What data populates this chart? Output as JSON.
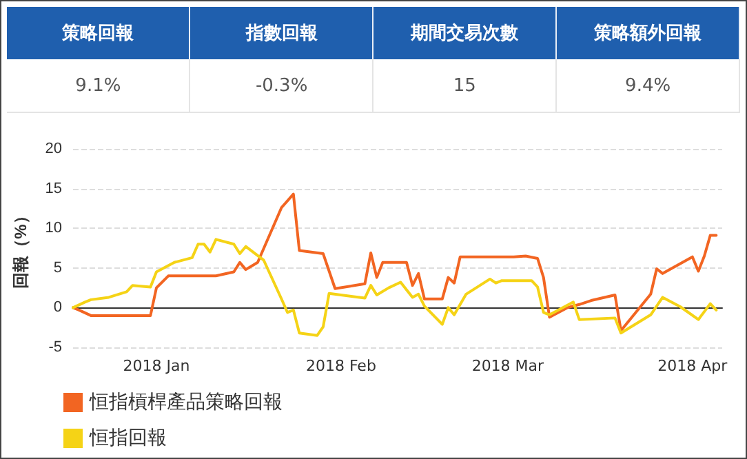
{
  "chart_data": [
    {
      "type": "other",
      "categories": [
        "策略回報",
        "指數回報",
        "期間交易次數",
        "策略額外回報"
      ],
      "value_labels": [
        "9.1%",
        "-0.3%",
        "15",
        "9.4%"
      ]
    },
    {
      "type": "line",
      "ylabel": "回報（%）",
      "xlim": [
        "2017-12-18",
        "2018-04-06"
      ],
      "xticks": [
        {
          "value": "2018-01-01",
          "label": "2018 Jan"
        },
        {
          "value": "2018-02-01",
          "label": "2018 Feb"
        },
        {
          "value": "2018-03-01",
          "label": "2018 Mar"
        },
        {
          "value": "2018-04-01",
          "label": "2018 Apr"
        }
      ],
      "ylim": [
        -5,
        20
      ],
      "yticks": [
        -5,
        0,
        5,
        10,
        15,
        20
      ],
      "grid": "y",
      "legend": "bottom left",
      "marker": "none",
      "line_style": "solid",
      "series": [
        {
          "name": "恒指槓桿產品策略回報",
          "color": "#f26522",
          "x": [
            "2017-12-18",
            "2017-12-19",
            "2017-12-21",
            "2017-12-31",
            "2018-01-01",
            "2018-01-03",
            "2018-01-11",
            "2018-01-14",
            "2018-01-15",
            "2018-01-16",
            "2018-01-18",
            "2018-01-22",
            "2018-01-24",
            "2018-01-25",
            "2018-01-29",
            "2018-01-31",
            "2018-02-05",
            "2018-02-06",
            "2018-02-07",
            "2018-02-08",
            "2018-02-12",
            "2018-02-13",
            "2018-02-14",
            "2018-02-15",
            "2018-02-18",
            "2018-02-19",
            "2018-02-20",
            "2018-02-21",
            "2018-03-02",
            "2018-03-04",
            "2018-03-06",
            "2018-03-07",
            "2018-03-08",
            "2018-03-11",
            "2018-03-13",
            "2018-03-15",
            "2018-03-19",
            "2018-03-20",
            "2018-03-25",
            "2018-03-26",
            "2018-03-27",
            "2018-04-01",
            "2018-04-02",
            "2018-04-03",
            "2018-04-04",
            "2018-04-05"
          ],
          "values": [
            0,
            -0.3,
            -1.0,
            -1.0,
            2.5,
            4.0,
            4.0,
            4.5,
            5.7,
            4.8,
            5.7,
            12.6,
            14.3,
            7.2,
            6.8,
            2.4,
            3.0,
            6.9,
            3.8,
            5.7,
            5.7,
            2.8,
            4.3,
            1.1,
            1.1,
            3.8,
            3.1,
            6.4,
            6.4,
            6.5,
            6.2,
            3.8,
            -1.2,
            0,
            0.4,
            0.9,
            1.6,
            -2.9,
            1.7,
            4.9,
            4.3,
            6.4,
            4.6,
            6.5,
            9.1,
            9.1
          ]
        },
        {
          "name": "恒指回報",
          "color": "#f5d316",
          "x": [
            "2017-12-18",
            "2017-12-20",
            "2017-12-21",
            "2017-12-24",
            "2017-12-27",
            "2017-12-28",
            "2017-12-31",
            "2018-01-01",
            "2018-01-04",
            "2018-01-07",
            "2018-01-08",
            "2018-01-09",
            "2018-01-10",
            "2018-01-11",
            "2018-01-14",
            "2018-01-15",
            "2018-01-16",
            "2018-01-19",
            "2018-01-22",
            "2018-01-23",
            "2018-01-24",
            "2018-01-25",
            "2018-01-28",
            "2018-01-29",
            "2018-01-30",
            "2018-02-05",
            "2018-02-06",
            "2018-02-07",
            "2018-02-09",
            "2018-02-11",
            "2018-02-13",
            "2018-02-14",
            "2018-02-15",
            "2018-02-18",
            "2018-02-19",
            "2018-02-20",
            "2018-02-22",
            "2018-02-26",
            "2018-02-27",
            "2018-02-28",
            "2018-03-05",
            "2018-03-06",
            "2018-03-07",
            "2018-03-08",
            "2018-03-12",
            "2018-03-13",
            "2018-03-19",
            "2018-03-20",
            "2018-03-25",
            "2018-03-27",
            "2018-03-30",
            "2018-04-02",
            "2018-04-04",
            "2018-04-05"
          ],
          "values": [
            0,
            0.7,
            1.0,
            1.3,
            2.0,
            2.8,
            2.6,
            4.5,
            5.7,
            6.3,
            8.0,
            8.0,
            7.0,
            8.6,
            8.0,
            6.8,
            7.7,
            6.0,
            1.1,
            -0.6,
            -0.3,
            -3.2,
            -3.5,
            -2.4,
            1.8,
            1.2,
            2.8,
            1.6,
            2.5,
            3.2,
            1.3,
            1.7,
            0.2,
            -2.1,
            0,
            -0.9,
            1.7,
            3.6,
            3.1,
            3.4,
            3.4,
            2.6,
            -0.6,
            -0.9,
            0.7,
            -1.5,
            -1.3,
            -3.2,
            -0.9,
            1.3,
            0.1,
            -1.5,
            0.5,
            -0.3
          ]
        }
      ]
    }
  ]
}
